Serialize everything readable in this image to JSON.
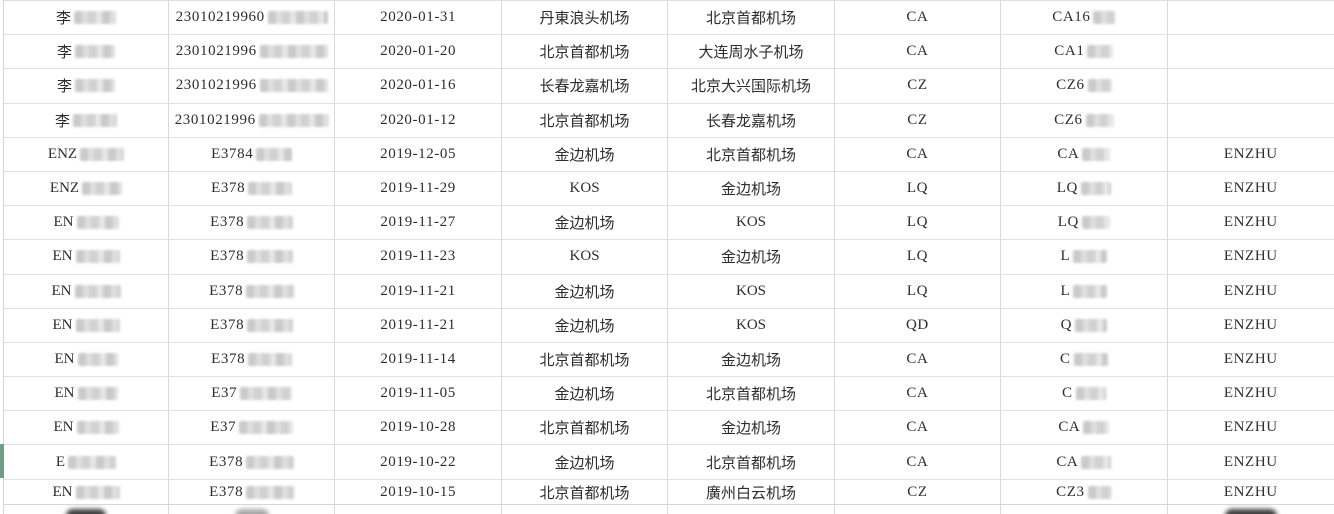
{
  "colors": {
    "background": "#ffffff",
    "grid_line": "#dcdcdc",
    "text": "#2d2d2d",
    "row_marker_green": "#6f9c85",
    "redaction_patch": "#cccccc"
  },
  "table": {
    "rows": [
      {
        "name": "李",
        "name_bw": 42,
        "id": "23010219960",
        "id_bw": 60,
        "date": "2020-01-31",
        "departure": "丹東浪头机场",
        "arrival": "北京首都机场",
        "airline": "CA",
        "flight": "CA16",
        "flight_bw": 22,
        "holder": ""
      },
      {
        "name": "李",
        "name_bw": 40,
        "id": "2301021996",
        "id_bw": 68,
        "date": "2020-01-20",
        "departure": "北京首都机场",
        "arrival": "大连周水子机场",
        "airline": "CA",
        "flight": "CA1",
        "flight_bw": 26,
        "holder": ""
      },
      {
        "name": "李",
        "name_bw": 40,
        "id": "2301021996",
        "id_bw": 68,
        "date": "2020-01-16",
        "departure": "长春龙嘉机场",
        "arrival": "北京大兴国际机场",
        "airline": "CZ",
        "flight": "CZ6",
        "flight_bw": 24,
        "holder": ""
      },
      {
        "name": "李",
        "name_bw": 44,
        "id": "2301021996",
        "id_bw": 70,
        "date": "2020-01-12",
        "departure": "北京首都机场",
        "arrival": "长春龙嘉机场",
        "airline": "CZ",
        "flight": "CZ6",
        "flight_bw": 28,
        "holder": ""
      },
      {
        "name": "ENZ",
        "name_bw": 44,
        "id": "E3784",
        "id_bw": 36,
        "date": "2019-12-05",
        "departure": "金边机场",
        "arrival": "北京首都机场",
        "airline": "CA",
        "flight": "CA",
        "flight_bw": 28,
        "holder": "ENZHU"
      },
      {
        "name": "ENZ",
        "name_bw": 40,
        "id": "E378",
        "id_bw": 44,
        "date": "2019-11-29",
        "departure": "KOS",
        "arrival": "金边机场",
        "airline": "LQ",
        "flight": "LQ",
        "flight_bw": 30,
        "holder": "ENZHU"
      },
      {
        "name": "EN",
        "name_bw": 42,
        "id": "E378",
        "id_bw": 46,
        "date": "2019-11-27",
        "departure": "金边机场",
        "arrival": "KOS",
        "airline": "LQ",
        "flight": "LQ",
        "flight_bw": 28,
        "holder": "ENZHU"
      },
      {
        "name": "EN",
        "name_bw": 44,
        "id": "E378",
        "id_bw": 46,
        "date": "2019-11-23",
        "departure": "KOS",
        "arrival": "金边机场",
        "airline": "LQ",
        "flight": "L",
        "flight_bw": 34,
        "holder": "ENZHU"
      },
      {
        "name": "EN",
        "name_bw": 46,
        "id": "E378",
        "id_bw": 48,
        "date": "2019-11-21",
        "departure": "金边机场",
        "arrival": "KOS",
        "airline": "LQ",
        "flight": "L",
        "flight_bw": 34,
        "holder": "ENZHU"
      },
      {
        "name": "EN",
        "name_bw": 44,
        "id": "E378",
        "id_bw": 46,
        "date": "2019-11-21",
        "departure": "金边机场",
        "arrival": "KOS",
        "airline": "QD",
        "flight": "Q",
        "flight_bw": 32,
        "holder": "ENZHU"
      },
      {
        "name": "EN",
        "name_bw": 40,
        "id": "E378",
        "id_bw": 44,
        "date": "2019-11-14",
        "departure": "北京首都机场",
        "arrival": "金边机场",
        "airline": "CA",
        "flight": "C",
        "flight_bw": 34,
        "holder": "ENZHU"
      },
      {
        "name": "EN",
        "name_bw": 40,
        "id": "E37",
        "id_bw": 52,
        "date": "2019-11-05",
        "departure": "金边机场",
        "arrival": "北京首都机场",
        "airline": "CA",
        "flight": "C",
        "flight_bw": 30,
        "holder": "ENZHU"
      },
      {
        "name": "EN",
        "name_bw": 42,
        "id": "E37",
        "id_bw": 54,
        "date": "2019-10-28",
        "departure": "北京首都机场",
        "arrival": "金边机场",
        "airline": "CA",
        "flight": "CA",
        "flight_bw": 26,
        "holder": "ENZHU"
      },
      {
        "name": "E",
        "name_bw": 48,
        "id": "E378",
        "id_bw": 48,
        "date": "2019-10-22",
        "departure": "金边机场",
        "arrival": "北京首都机场",
        "airline": "CA",
        "flight": "CA",
        "flight_bw": 30,
        "holder": "ENZHU",
        "marker": "green"
      },
      {
        "name": "EN",
        "name_bw": 44,
        "id": "E378",
        "id_bw": 48,
        "date": "2019-10-15",
        "departure": "北京首都机场",
        "arrival": "廣州白云机场",
        "airline": "CZ",
        "flight": "CZ3",
        "flight_bw": 24,
        "holder": "ENZHU"
      }
    ],
    "partial_next_row": {
      "smudges": [
        {
          "column": 0,
          "shade": "dark",
          "width": 40
        },
        {
          "column": 1,
          "shade": "light",
          "width": 34
        },
        {
          "column": 7,
          "shade": "dark",
          "width": 52
        }
      ]
    }
  }
}
